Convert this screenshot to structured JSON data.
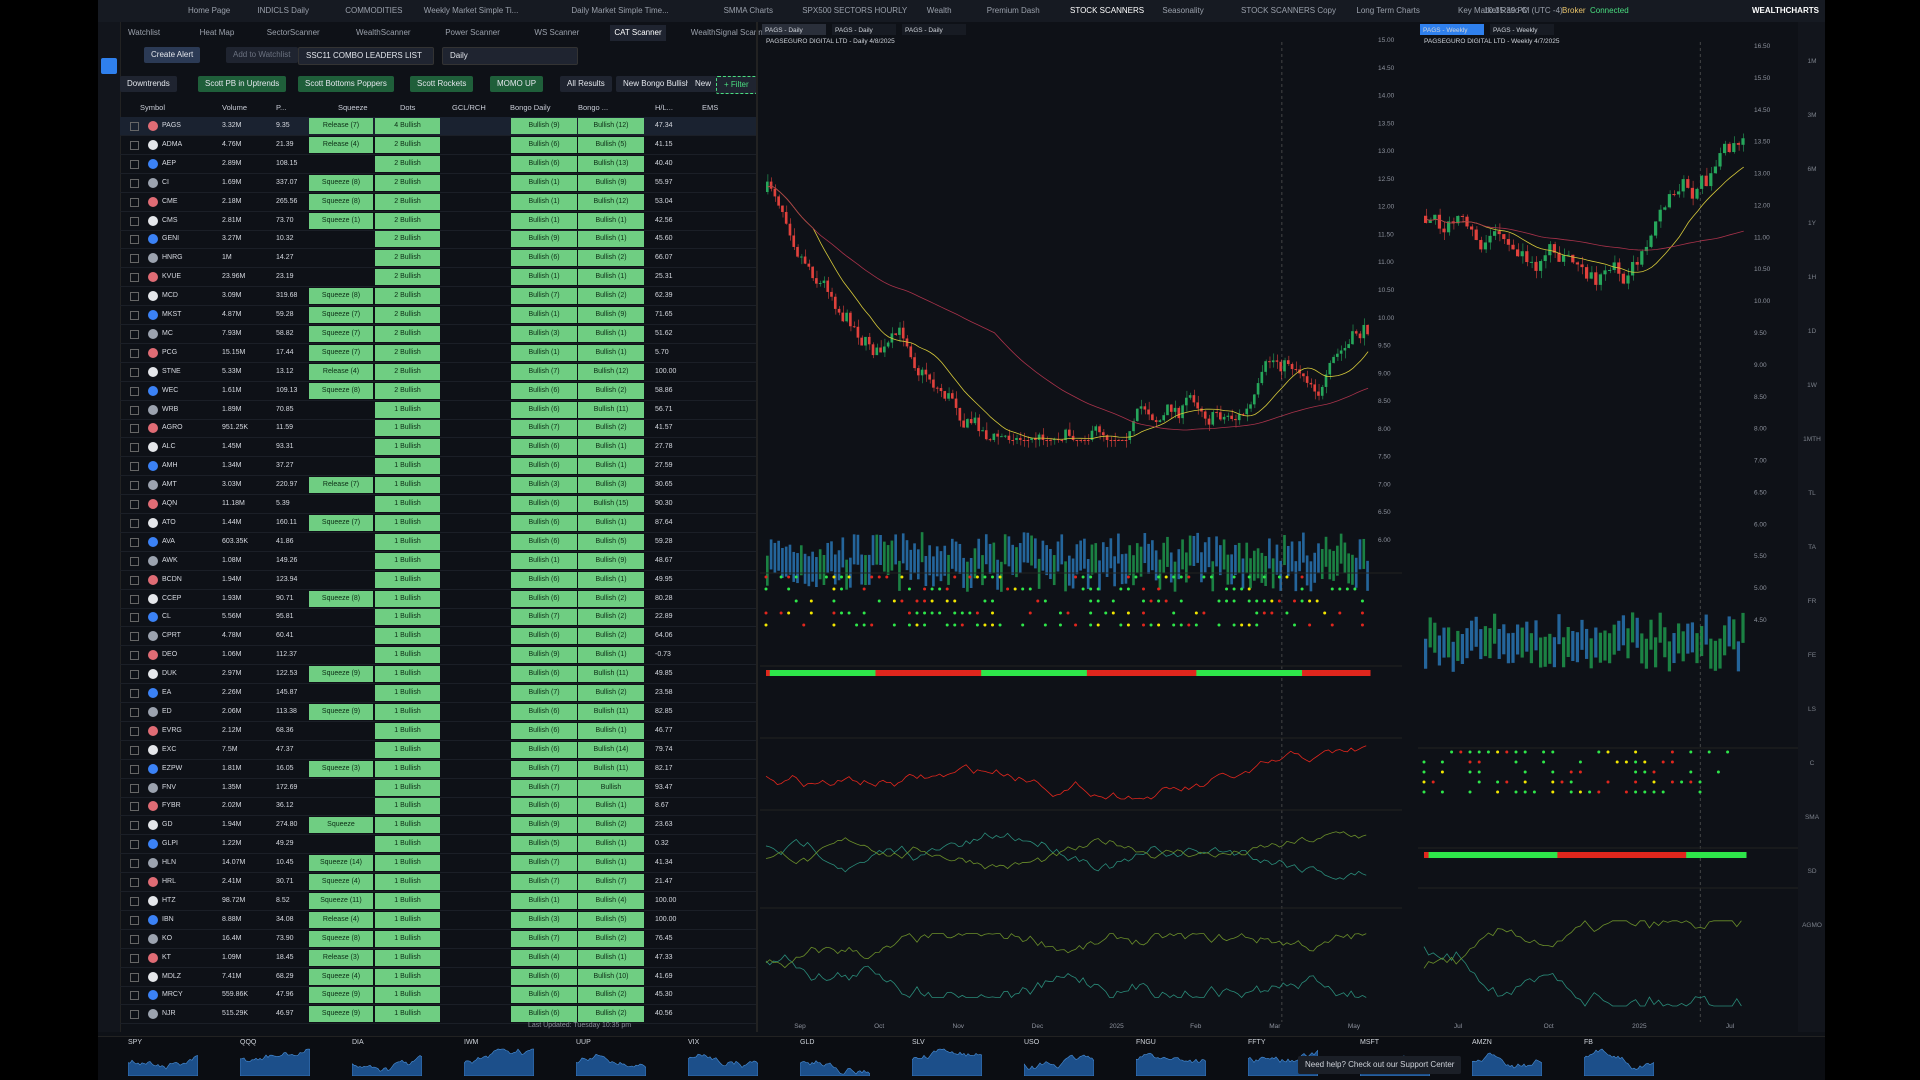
{
  "top_tabs": [
    "Home Page",
    "INDICLS Daily",
    "COMMODITIES",
    "Weekly Market Simple Ti...",
    "Daily Market Simple Time...",
    "SMMA Charts",
    "SPX500 SECTORS HOURLY",
    "Wealth",
    "Premium Dash",
    "STOCK SCANNERS",
    "Seasonality",
    "STOCK SCANNERS Copy",
    "Long Term Charts",
    "Key Market Ratio C"
  ],
  "status": {
    "time": "10:35:39 PM (UTC -4)",
    "broker": "Broker",
    "connection": "Connected",
    "brand": "WEALTHCHARTS"
  },
  "scanner_tabs": [
    "Watchlist",
    "Heat Map",
    "SectorScanner",
    "WealthScanner",
    "Power Scanner",
    "WS Scanner",
    "CAT Scanner",
    "WealthSignal Scann"
  ],
  "toolbar": {
    "create_alert": "Create Alert",
    "add_watchlist": "Add to Watchlist",
    "list": "SSC11 COMBO LEADERS LIST",
    "timeframe": "Daily"
  },
  "filters": [
    "Downtrends",
    "Scott PB in Uptrends",
    "Scott Bottoms Poppers",
    "Scott Rockets",
    "MOMO UP",
    "All Results",
    "New Bongo Bullish",
    "New",
    "+ Filter"
  ],
  "table": {
    "columns": [
      "Symbol",
      "Volume",
      "P...",
      "Squeeze",
      "Dots",
      "GCL/RCH",
      "Bongo Daily",
      "Bongo ...",
      "H/L...",
      "EMS"
    ],
    "rows": [
      {
        "symbol": "PAGS",
        "volume": "3.32M",
        "price": "9.35",
        "squeeze": "Release (7)",
        "dots": "4 Bullish",
        "bongo_daily": "Bullish (9)",
        "bongo_weekly": "Bullish (12)",
        "hl": "47.34"
      },
      {
        "symbol": "ADMA",
        "volume": "4.76M",
        "price": "21.39",
        "squeeze": "Release (4)",
        "dots": "2 Bullish",
        "bongo_daily": "Bullish (6)",
        "bongo_weekly": "Bullish (5)",
        "hl": "41.15"
      },
      {
        "symbol": "AEP",
        "volume": "2.89M",
        "price": "108.15",
        "dots": "2 Bullish",
        "bongo_daily": "Bullish (6)",
        "bongo_weekly": "Bullish (13)",
        "hl": "40.40"
      },
      {
        "symbol": "CI",
        "volume": "1.69M",
        "price": "337.07",
        "squeeze": "Squeeze (8)",
        "dots": "2 Bullish",
        "bongo_daily": "Bullish (1)",
        "bongo_weekly": "Bullish (9)",
        "hl": "55.97"
      },
      {
        "symbol": "CME",
        "volume": "2.18M",
        "price": "265.56",
        "squeeze": "Squeeze (8)",
        "dots": "2 Bullish",
        "bongo_daily": "Bullish (1)",
        "bongo_weekly": "Bullish (12)",
        "hl": "53.04"
      },
      {
        "symbol": "CMS",
        "volume": "2.81M",
        "price": "73.70",
        "squeeze": "Squeeze (1)",
        "dots": "2 Bullish",
        "bongo_daily": "Bullish (1)",
        "bongo_weekly": "Bullish (1)",
        "hl": "42.56"
      },
      {
        "symbol": "GENI",
        "volume": "3.27M",
        "price": "10.32",
        "dots": "2 Bullish",
        "bongo_daily": "Bullish (9)",
        "bongo_weekly": "Bullish (1)",
        "hl": "45.60"
      },
      {
        "symbol": "HNRG",
        "volume": "1M",
        "price": "14.27",
        "dots": "2 Bullish",
        "bongo_daily": "Bullish (6)",
        "bongo_weekly": "Bullish (2)",
        "hl": "66.07"
      },
      {
        "symbol": "KVUE",
        "volume": "23.96M",
        "price": "23.19",
        "dots": "2 Bullish",
        "bongo_daily": "Bullish (1)",
        "bongo_weekly": "Bullish (1)",
        "hl": "25.31"
      },
      {
        "symbol": "MCD",
        "volume": "3.09M",
        "price": "319.68",
        "squeeze": "Squeeze (8)",
        "dots": "2 Bullish",
        "bongo_daily": "Bullish (7)",
        "bongo_weekly": "Bullish (2)",
        "hl": "62.39"
      },
      {
        "symbol": "MKST",
        "volume": "4.87M",
        "price": "59.28",
        "squeeze": "Squeeze (7)",
        "dots": "2 Bullish",
        "bongo_daily": "Bullish (1)",
        "bongo_weekly": "Bullish (9)",
        "hl": "71.65"
      },
      {
        "symbol": "MC",
        "volume": "7.93M",
        "price": "58.82",
        "squeeze": "Squeeze (7)",
        "dots": "2 Bullish",
        "bongo_daily": "Bullish (3)",
        "bongo_weekly": "Bullish (1)",
        "hl": "51.62"
      },
      {
        "symbol": "PCG",
        "volume": "15.15M",
        "price": "17.44",
        "squeeze": "Squeeze (7)",
        "dots": "2 Bullish",
        "bongo_daily": "Bullish (1)",
        "bongo_weekly": "Bullish (1)",
        "hl": "5.70"
      },
      {
        "symbol": "STNE",
        "volume": "5.33M",
        "price": "13.12",
        "squeeze": "Release (4)",
        "dots": "2 Bullish",
        "bongo_daily": "Bullish (7)",
        "bongo_weekly": "Bullish (12)",
        "hl": "100.00"
      },
      {
        "symbol": "WEC",
        "volume": "1.61M",
        "price": "109.13",
        "squeeze": "Squeeze (8)",
        "dots": "2 Bullish",
        "bongo_daily": "Bullish (6)",
        "bongo_weekly": "Bullish (2)",
        "hl": "58.86"
      },
      {
        "symbol": "WRB",
        "volume": "1.89M",
        "price": "70.85",
        "dots": "1 Bullish",
        "bongo_daily": "Bullish (6)",
        "bongo_weekly": "Bullish (11)",
        "hl": "56.71"
      },
      {
        "symbol": "AGRO",
        "volume": "951.25K",
        "price": "11.59",
        "dots": "1 Bullish",
        "bongo_daily": "Bullish (7)",
        "bongo_weekly": "Bullish (2)",
        "hl": "41.57"
      },
      {
        "symbol": "ALC",
        "volume": "1.45M",
        "price": "93.31",
        "dots": "1 Bullish",
        "bongo_daily": "Bullish (6)",
        "bongo_weekly": "Bullish (1)",
        "hl": "27.78"
      },
      {
        "symbol": "AMH",
        "volume": "1.34M",
        "price": "37.27",
        "dots": "1 Bullish",
        "bongo_daily": "Bullish (6)",
        "bongo_weekly": "Bullish (1)",
        "hl": "27.59"
      },
      {
        "symbol": "AMT",
        "volume": "3.03M",
        "price": "220.97",
        "squeeze": "Release (7)",
        "dots": "1 Bullish",
        "bongo_daily": "Bullish (3)",
        "bongo_weekly": "Bullish (3)",
        "hl": "30.65"
      },
      {
        "symbol": "AQN",
        "volume": "11.18M",
        "price": "5.39",
        "dots": "1 Bullish",
        "bongo_daily": "Bullish (6)",
        "bongo_weekly": "Bullish (15)",
        "hl": "90.30"
      },
      {
        "symbol": "ATO",
        "volume": "1.44M",
        "price": "160.11",
        "squeeze": "Squeeze (7)",
        "dots": "1 Bullish",
        "bongo_daily": "Bullish (6)",
        "bongo_weekly": "Bullish (1)",
        "hl": "87.64"
      },
      {
        "symbol": "AVA",
        "volume": "603.35K",
        "price": "41.86",
        "dots": "1 Bullish",
        "bongo_daily": "Bullish (6)",
        "bongo_weekly": "Bullish (5)",
        "hl": "59.28"
      },
      {
        "symbol": "AWK",
        "volume": "1.08M",
        "price": "149.26",
        "dots": "1 Bullish",
        "bongo_daily": "Bullish (1)",
        "bongo_weekly": "Bullish (9)",
        "hl": "48.67"
      },
      {
        "symbol": "BCDN",
        "volume": "1.94M",
        "price": "123.94",
        "dots": "1 Bullish",
        "bongo_daily": "Bullish (6)",
        "bongo_weekly": "Bullish (1)",
        "hl": "49.95"
      },
      {
        "symbol": "CCEP",
        "volume": "1.93M",
        "price": "90.71",
        "squeeze": "Squeeze (8)",
        "dots": "1 Bullish",
        "bongo_daily": "Bullish (6)",
        "bongo_weekly": "Bullish (2)",
        "hl": "80.28"
      },
      {
        "symbol": "CL",
        "volume": "5.56M",
        "price": "95.81",
        "dots": "1 Bullish",
        "bongo_daily": "Bullish (7)",
        "bongo_weekly": "Bullish (2)",
        "hl": "22.89"
      },
      {
        "symbol": "CPRT",
        "volume": "4.78M",
        "price": "60.41",
        "dots": "1 Bullish",
        "bongo_daily": "Bullish (6)",
        "bongo_weekly": "Bullish (2)",
        "hl": "64.06"
      },
      {
        "symbol": "DEO",
        "volume": "1.06M",
        "price": "112.37",
        "dots": "1 Bullish",
        "bongo_daily": "Bullish (9)",
        "bongo_weekly": "Bullish (1)",
        "hl": "-0.73"
      },
      {
        "symbol": "DUK",
        "volume": "2.97M",
        "price": "122.53",
        "squeeze": "Squeeze (9)",
        "dots": "1 Bullish",
        "bongo_daily": "Bullish (6)",
        "bongo_weekly": "Bullish (11)",
        "hl": "49.85"
      },
      {
        "symbol": "EA",
        "volume": "2.26M",
        "price": "145.87",
        "dots": "1 Bullish",
        "bongo_daily": "Bullish (7)",
        "bongo_weekly": "Bullish (2)",
        "hl": "23.58"
      },
      {
        "symbol": "ED",
        "volume": "2.06M",
        "price": "113.38",
        "squeeze": "Squeeze (9)",
        "dots": "1 Bullish",
        "bongo_daily": "Bullish (6)",
        "bongo_weekly": "Bullish (11)",
        "hl": "82.85"
      },
      {
        "symbol": "EVRG",
        "volume": "2.12M",
        "price": "68.36",
        "dots": "1 Bullish",
        "bongo_daily": "Bullish (6)",
        "bongo_weekly": "Bullish (1)",
        "hl": "46.77"
      },
      {
        "symbol": "EXC",
        "volume": "7.5M",
        "price": "47.37",
        "dots": "1 Bullish",
        "bongo_daily": "Bullish (6)",
        "bongo_weekly": "Bullish (14)",
        "hl": "79.74"
      },
      {
        "symbol": "EZPW",
        "volume": "1.81M",
        "price": "16.05",
        "squeeze": "Squeeze (3)",
        "dots": "1 Bullish",
        "bongo_daily": "Bullish (7)",
        "bongo_weekly": "Bullish (11)",
        "hl": "82.17"
      },
      {
        "symbol": "FNV",
        "volume": "1.35M",
        "price": "172.69",
        "dots": "1 Bullish",
        "bongo_daily": "Bullish (7)",
        "bongo_weekly": "Bullish",
        "hl": "93.47"
      },
      {
        "symbol": "FYBR",
        "volume": "2.02M",
        "price": "36.12",
        "dots": "1 Bullish",
        "bongo_daily": "Bullish (6)",
        "bongo_weekly": "Bullish (1)",
        "hl": "8.67"
      },
      {
        "symbol": "GD",
        "volume": "1.94M",
        "price": "274.80",
        "squeeze": "Squeeze",
        "dots": "1 Bullish",
        "bongo_daily": "Bullish (9)",
        "bongo_weekly": "Bullish (2)",
        "hl": "23.63"
      },
      {
        "symbol": "GLPI",
        "volume": "1.22M",
        "price": "49.29",
        "dots": "1 Bullish",
        "bongo_daily": "Bullish (5)",
        "bongo_weekly": "Bullish (1)",
        "hl": "0.32"
      },
      {
        "symbol": "HLN",
        "volume": "14.07M",
        "price": "10.45",
        "squeeze": "Squeeze (14)",
        "dots": "1 Bullish",
        "bongo_daily": "Bullish (7)",
        "bongo_weekly": "Bullish (1)",
        "hl": "41.34"
      },
      {
        "symbol": "HRL",
        "volume": "2.41M",
        "price": "30.71",
        "squeeze": "Squeeze (4)",
        "dots": "1 Bullish",
        "bongo_daily": "Bullish (7)",
        "bongo_weekly": "Bullish (7)",
        "hl": "21.47"
      },
      {
        "symbol": "HTZ",
        "volume": "98.72M",
        "price": "8.52",
        "squeeze": "Squeeze (11)",
        "dots": "1 Bullish",
        "bongo_daily": "Bullish (1)",
        "bongo_weekly": "Bullish (4)",
        "hl": "100.00"
      },
      {
        "symbol": "IBN",
        "volume": "8.88M",
        "price": "34.08",
        "squeeze": "Release (4)",
        "dots": "1 Bullish",
        "bongo_daily": "Bullish (3)",
        "bongo_weekly": "Bullish (5)",
        "hl": "100.00"
      },
      {
        "symbol": "KO",
        "volume": "16.4M",
        "price": "73.90",
        "squeeze": "Squeeze (8)",
        "dots": "1 Bullish",
        "bongo_daily": "Bullish (7)",
        "bongo_weekly": "Bullish (2)",
        "hl": "76.45"
      },
      {
        "symbol": "KT",
        "volume": "1.09M",
        "price": "18.45",
        "squeeze": "Release (3)",
        "dots": "1 Bullish",
        "bongo_daily": "Bullish (4)",
        "bongo_weekly": "Bullish (1)",
        "hl": "47.33"
      },
      {
        "symbol": "MDLZ",
        "volume": "7.41M",
        "price": "68.29",
        "squeeze": "Squeeze (4)",
        "dots": "1 Bullish",
        "bongo_daily": "Bullish (6)",
        "bongo_weekly": "Bullish (10)",
        "hl": "41.69"
      },
      {
        "symbol": "MRCY",
        "volume": "559.86K",
        "price": "47.96",
        "squeeze": "Squeeze (9)",
        "dots": "1 Bullish",
        "bongo_daily": "Bullish (6)",
        "bongo_weekly": "Bullish (2)",
        "hl": "45.30"
      },
      {
        "symbol": "NJR",
        "volume": "515.29K",
        "price": "46.97",
        "squeeze": "Squeeze (9)",
        "dots": "1 Bullish",
        "bongo_daily": "Bullish (6)",
        "bongo_weekly": "Bullish (2)",
        "hl": "40.56"
      }
    ],
    "footer": "Last Updated: Tuesday 10:35 pm"
  },
  "daily_chart": {
    "tabs": [
      "PAGS - Daily",
      "PAGS - Daily",
      "PAGS - Daily"
    ],
    "title": "PAGSEGURO DIGITAL LTD - Daily 4/8/2025",
    "price_axis": [
      "15.00",
      "14.50",
      "14.00",
      "13.50",
      "13.00",
      "12.50",
      "12.00",
      "11.50",
      "11.00",
      "10.50",
      "10.00",
      "9.50",
      "9.00",
      "8.50",
      "8.00",
      "7.50",
      "7.00",
      "6.50",
      "6.00"
    ],
    "time_axis": [
      "Sep",
      "Oct",
      "Nov",
      "Dec",
      "2025",
      "Feb",
      "Mar",
      "May"
    ]
  },
  "weekly_chart": {
    "tabs": [
      "PAGS - Weekly",
      "PAGS - Weekly"
    ],
    "title": "PAGSEGURO DIGITAL LTD - Weekly 4/7/2025",
    "price_axis": [
      "16.50",
      "15.50",
      "14.50",
      "13.50",
      "13.00",
      "12.00",
      "11.00",
      "10.50",
      "10.00",
      "9.50",
      "9.00",
      "8.50",
      "8.00",
      "7.00",
      "6.50",
      "6.00",
      "5.50",
      "5.00",
      "4.50"
    ],
    "time_axis": [
      "Jul",
      "Oct",
      "2025",
      "Jul"
    ]
  },
  "side_labels": [
    "1M",
    "3M",
    "6M",
    "1Y",
    "1H",
    "1D",
    "1W",
    "1MTH",
    "TL",
    "TA",
    "FR",
    "FE",
    "LS",
    "C",
    "SMA",
    "SD",
    "AGMO"
  ],
  "tickers": [
    "SPY",
    "QQQ",
    "DIA",
    "IWM",
    "UUP",
    "VIX",
    "GLD",
    "SLV",
    "USO",
    "FNGU",
    "FFTY",
    "MSFT",
    "AMZN",
    "FB"
  ],
  "support": "Need help? Check out our Support Center"
}
